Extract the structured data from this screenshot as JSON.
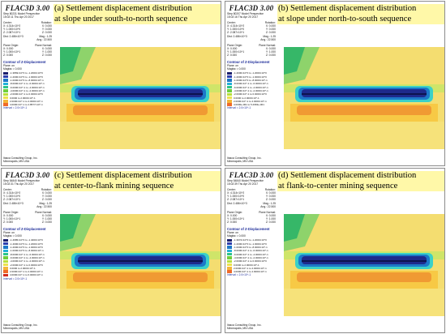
{
  "logo": "FLAC3D 3.00",
  "panels": [
    {
      "caption_line1": "(a) Settlement displacement distribution",
      "caption_line2": "at slope under south-to-north sequence",
      "step": "Step 80231  Model Perspective",
      "time": "15:02:11 Thu Apr 20 2017",
      "center_label": "Center:",
      "rotation_label": "Rotation:",
      "center_x": "X: 4.314×10^2",
      "rot_x": "X: 0.000",
      "center_y": "Y: 1.000×10^0",
      "rot_y": "Y: 0.000",
      "center_z": "Z: 2.087×10^1",
      "rot_z": "Z: 0.000",
      "dist": "Dist: 2.486×10^3",
      "mag": "Mag.: 1.25",
      "ang": "Ang.: 22.500",
      "plane_origin": "Plane Origin:",
      "plane_normal": "Plane Normal:",
      "po_x": "X: 0.000",
      "pn_x": "X: 0.000",
      "po_y": "Y: 1.000×10^1",
      "pn_y": "Y: 1.000",
      "po_z": "Z: 0.000",
      "pn_z": "Z: 0.000",
      "contour_title": "Contour of Z-Displacement",
      "plane": "Plane: on",
      "magfac": "Magfac = 0.000",
      "ramp": [
        {
          "c": "#1b1f6d",
          "t": "-1.3869×10^0 to -1.2000×10^0"
        },
        {
          "c": "#2e3fae",
          "t": "-1.2000×10^0 to -1.0000×10^0"
        },
        {
          "c": "#1d78c9",
          "t": "-1.0000×10^0 to -8.0000×10^-1"
        },
        {
          "c": "#22b2d9",
          "t": "-8.0000×10^-1 to -6.0000×10^-1"
        },
        {
          "c": "#2bc48b",
          "t": "-6.0000×10^-1 to -4.0000×10^-1"
        },
        {
          "c": "#6fcf3c",
          "t": "-4.0000×10^-1 to -2.0000×10^-1"
        },
        {
          "c": "#b8e03a",
          "t": "-2.0000×10^-1 to 0.0000×10^0"
        },
        {
          "c": "#ece34b",
          "t": "0.0000 to 2.0000×10^-1"
        },
        {
          "c": "#f4b63a",
          "t": "2.0000×10^-1 to 4.0000×10^-1"
        },
        {
          "c": "#ef6a2a",
          "t": "4.0000×10^-1 to 4.8577×10^-1"
        }
      ],
      "interval": "Interval = 2.0×10^-1",
      "company": "Itasca Consulting Group, Inc.",
      "city": "Minneapolis, MN  USA"
    },
    {
      "caption_line1": "(b) Settlement displacement distribution",
      "caption_line2": "at slope under north-to-south sequence",
      "step": "Step 80207  Model Perspective",
      "time": "15:02:16 Thu Apr 20 2017",
      "center_label": "Center:",
      "rotation_label": "Rotation:",
      "center_x": "X: 4.314×10^2",
      "rot_x": "X: 0.000",
      "center_y": "Y: 1.000×10^0",
      "rot_y": "Y: 0.000",
      "center_z": "Z: 2.087×10^1",
      "rot_z": "Z: 0.000",
      "dist": "Dist: 2.486×10^3",
      "mag": "Mag.: 1.25",
      "ang": "Ang.: 22.500",
      "plane_origin": "Plane Origin:",
      "plane_normal": "Plane Normal:",
      "po_x": "X: 0.000",
      "pn_x": "X: 0.000",
      "po_y": "Y: 1.000×10^1",
      "pn_y": "Y: 1.000",
      "po_z": "Z: 0.000",
      "pn_z": "Z: 0.000",
      "contour_title": "Contour of Z-Displacement",
      "plane": "Plane: on",
      "magfac": "Magfac = 0.000",
      "ramp": [
        {
          "c": "#1b1f6d",
          "t": "-1.4000×10^0 to -1.2000×10^0"
        },
        {
          "c": "#2e3fae",
          "t": "-1.2000×10^0 to -1.0000×10^0"
        },
        {
          "c": "#1d78c9",
          "t": "-1.0000×10^0 to -8.0000×10^-1"
        },
        {
          "c": "#22b2d9",
          "t": "-8.0000×10^-1 to -6.0000×10^-1"
        },
        {
          "c": "#2bc48b",
          "t": "-6.0000×10^-1 to -4.0000×10^-1"
        },
        {
          "c": "#6fcf3c",
          "t": "-4.0000×10^-1 to -2.0000×10^-1"
        },
        {
          "c": "#b8e03a",
          "t": "-2.0000×10^-1 to 0.0000×10^0"
        },
        {
          "c": "#ece34b",
          "t": "0.0000 to 2.0000×10^-1"
        },
        {
          "c": "#f4b63a",
          "t": "2.0000×10^-1 to 4.0000×10^-1"
        },
        {
          "c": "#ef6a2a",
          "t": "4.0000e-001 to 5.2963e-001"
        }
      ],
      "interval": "Interval = 2.0×10^-1",
      "company": "Itasca Consulting Group, Inc.",
      "city": "Minneapolis, MN  USA"
    },
    {
      "caption_line1": "(c) Settlement displacement distribution",
      "caption_line2": "at center-to-flank mining sequence",
      "step": "Step 54840  Model Perspective",
      "time": "15:02:31 Thu Apr 20 2017",
      "center_label": "Center:",
      "rotation_label": "Rotation:",
      "center_x": "X: 4.314×10^2",
      "rot_x": "X: 0.000",
      "center_y": "Y: 1.000×10^0",
      "rot_y": "Y: 0.000",
      "center_z": "Z: 2.087×10^1",
      "rot_z": "Z: 0.000",
      "dist": "Dist: 2.486×10^3",
      "mag": "Mag.: 1.25",
      "ang": "Ang.: 22.500",
      "plane_origin": "Plane Origin:",
      "plane_normal": "Plane Normal:",
      "po_x": "X: 0.000",
      "pn_x": "X: 0.000",
      "po_y": "Y: 1.000×10^1",
      "pn_y": "Y: 1.000",
      "po_z": "Z: 0.000",
      "pn_z": "Z: 0.000",
      "contour_title": "Contour of Z-Displacement",
      "plane": "Plane: on",
      "magfac": "Magfac = 0.000",
      "ramp": [
        {
          "c": "#1b1f6d",
          "t": "-1.4685×10^0 to -1.4000×10^0"
        },
        {
          "c": "#2e3fae",
          "t": "-1.4000×10^0 to -1.2000×10^0"
        },
        {
          "c": "#1d78c9",
          "t": "-1.2000×10^0 to -1.0000×10^0"
        },
        {
          "c": "#22b2d9",
          "t": "-1.0000×10^0 to -8.0000×10^-1"
        },
        {
          "c": "#2bc48b",
          "t": "-8.0000×10^-1 to -6.0000×10^-1"
        },
        {
          "c": "#6fcf3c",
          "t": "-6.0000×10^-1 to -4.0000×10^-1"
        },
        {
          "c": "#b8e03a",
          "t": "-4.0000×10^-1 to -2.0000×10^-1"
        },
        {
          "c": "#ece34b",
          "t": "-2.0000×10^-1 to 0.0000×10^0"
        },
        {
          "c": "#f4b63a",
          "t": "0.0000 to 2.0000×10^-1"
        },
        {
          "c": "#ef6a2a",
          "t": "2.0000×10^-1 to 4.0000×10^-1"
        },
        {
          "c": "#d42a1e",
          "t": "4.0000×10^-1 to 6.0000×10^-1"
        }
      ],
      "interval": "Interval = 2.0×10^-1",
      "company": "Itasca Consulting Group, Inc.",
      "city": "Minneapolis, MN  USA"
    },
    {
      "caption_line1": "(d) Settlement displacement distribution",
      "caption_line2": "at flank-to-center mining sequence",
      "step": "Step 54840  Model Perspective",
      "time": "15:02:39 Thu Apr 20 2017",
      "center_label": "Center:",
      "rotation_label": "Rotation:",
      "center_x": "X: 4.314×10^2",
      "rot_x": "X: 0.000",
      "center_y": "Y: 1.000×10^0",
      "rot_y": "Y: 0.000",
      "center_z": "Z: 2.087×10^1",
      "rot_z": "Z: 0.000",
      "dist": "Dist: 2.486×10^3",
      "mag": "Mag.: 1.25",
      "ang": "Ang.: 22.500",
      "plane_origin": "Plane Origin:",
      "plane_normal": "Plane Normal:",
      "po_x": "X: 0.000",
      "pn_x": "X: 0.000",
      "po_y": "Y: 1.000×10^1",
      "pn_y": "Y: 1.000",
      "po_z": "Z: 0.000",
      "pn_z": "Z: 0.000",
      "contour_title": "Contour of Z-Displacement",
      "plane": "Plane: on",
      "magfac": "Magfac = 0.000",
      "ramp": [
        {
          "c": "#1b1f6d",
          "t": "-1.3972×10^0 to -1.2000×10^0"
        },
        {
          "c": "#2e3fae",
          "t": "-1.2000×10^0 to -1.0000×10^0"
        },
        {
          "c": "#1d78c9",
          "t": "-1.0000×10^0 to -8.0000×10^-1"
        },
        {
          "c": "#22b2d9",
          "t": "-8.0000×10^-1 to -6.0000×10^-1"
        },
        {
          "c": "#2bc48b",
          "t": "-6.0000×10^-1 to -4.0000×10^-1"
        },
        {
          "c": "#6fcf3c",
          "t": "-4.0000×10^-1 to -2.0000×10^-1"
        },
        {
          "c": "#b8e03a",
          "t": "-2.0000×10^-1 to 0.0000×10^0"
        },
        {
          "c": "#ece34b",
          "t": "0.0000 to 2.0000×10^-1"
        },
        {
          "c": "#f4b63a",
          "t": "2.0000×10^-1 to 4.0000×10^-1"
        },
        {
          "c": "#ef6a2a",
          "t": "4.0000×10^-1 to 4.9000×10^-1"
        }
      ],
      "interval": "Interval = 2.0×10^-1",
      "company": "Itasca Consulting Group, Inc.",
      "city": "Minneapolis, MN  USA"
    }
  ]
}
